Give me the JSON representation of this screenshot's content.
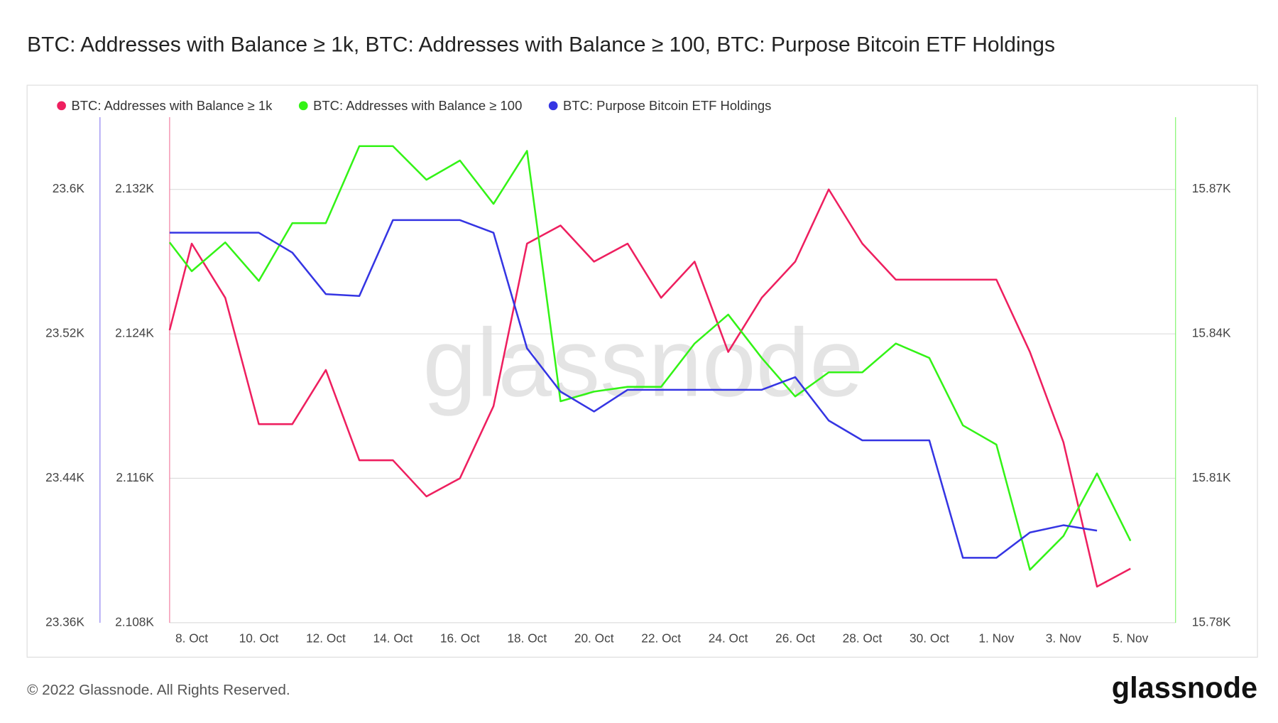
{
  "title": "BTC: Addresses with Balance ≥ 1k, BTC: Addresses with Balance ≥ 100, BTC: Purpose Bitcoin ETF Holdings",
  "watermark": "glassnode",
  "footer": {
    "copyright": "© 2022 Glassnode. All Rights Reserved.",
    "logo": "glassnode"
  },
  "chart_data": {
    "type": "line",
    "categories": [
      null,
      "8. Oct",
      null,
      "10. Oct",
      null,
      "12. Oct",
      null,
      "14. Oct",
      null,
      "16. Oct",
      null,
      "18. Oct",
      null,
      "20. Oct",
      null,
      "22. Oct",
      null,
      "24. Oct",
      null,
      "26. Oct",
      null,
      "28. Oct",
      null,
      "30. Oct",
      null,
      "1. Nov",
      null,
      "3. Nov",
      null,
      "5. Nov"
    ],
    "series": [
      {
        "name": "BTC: Addresses with Balance ≥ 1k",
        "color": "#ee1f5f",
        "axis": "y2",
        "values": [
          2124.2,
          2129,
          2126,
          2119,
          2119,
          2122,
          2117,
          2117,
          2115,
          2116,
          2120,
          2129,
          2130,
          2128,
          2129,
          2126,
          2128,
          2123,
          2126,
          2128,
          2132,
          2129,
          2127,
          2127,
          2127,
          2127,
          2123,
          2118,
          2110,
          2111
        ]
      },
      {
        "name": "BTC: Addresses with Balance ≥ 100",
        "color": "#33f316",
        "axis": "y3",
        "values": [
          15859,
          15853,
          15859,
          15851,
          15863,
          15863,
          15879,
          15879,
          15872,
          15876,
          15867,
          15878,
          15826,
          15828,
          15829,
          15829,
          15838,
          15844,
          15835,
          15827,
          15832,
          15832,
          15838,
          15835,
          15821,
          15817,
          15791,
          15798,
          15811,
          15797
        ]
      },
      {
        "name": "BTC: Purpose Bitcoin ETF Holdings",
        "color": "#3535e3",
        "axis": "y",
        "values": [
          23576,
          23576,
          23576,
          23576,
          23565,
          23542,
          23541,
          23583,
          23583,
          23583,
          23576,
          23512,
          23488,
          23477,
          23489,
          23489,
          23489,
          23489,
          23489,
          23496,
          23472,
          23461,
          23461,
          23461,
          23396,
          23396,
          23410,
          23414,
          23411,
          null
        ]
      }
    ],
    "ylim": [
      23360,
      23640
    ],
    "yticks": [
      {
        "value": 23360,
        "label": "23.36K"
      },
      {
        "value": 23440,
        "label": "23.44K"
      },
      {
        "value": 23520,
        "label": "23.52K"
      },
      {
        "value": 23600,
        "label": "23.6K"
      }
    ],
    "y2lim": [
      2108,
      2136
    ],
    "y2ticks": [
      {
        "value": 2108,
        "label": "2.108K"
      },
      {
        "value": 2116,
        "label": "2.116K"
      },
      {
        "value": 2124,
        "label": "2.124K"
      },
      {
        "value": 2132,
        "label": "2.132K"
      }
    ],
    "y3lim": [
      15780,
      15885
    ],
    "y3ticks": [
      {
        "value": 15780,
        "label": "15.78K"
      },
      {
        "value": 15810,
        "label": "15.81K"
      },
      {
        "value": 15840,
        "label": "15.84K"
      },
      {
        "value": 15870,
        "label": "15.87K"
      }
    ],
    "grid": true
  }
}
